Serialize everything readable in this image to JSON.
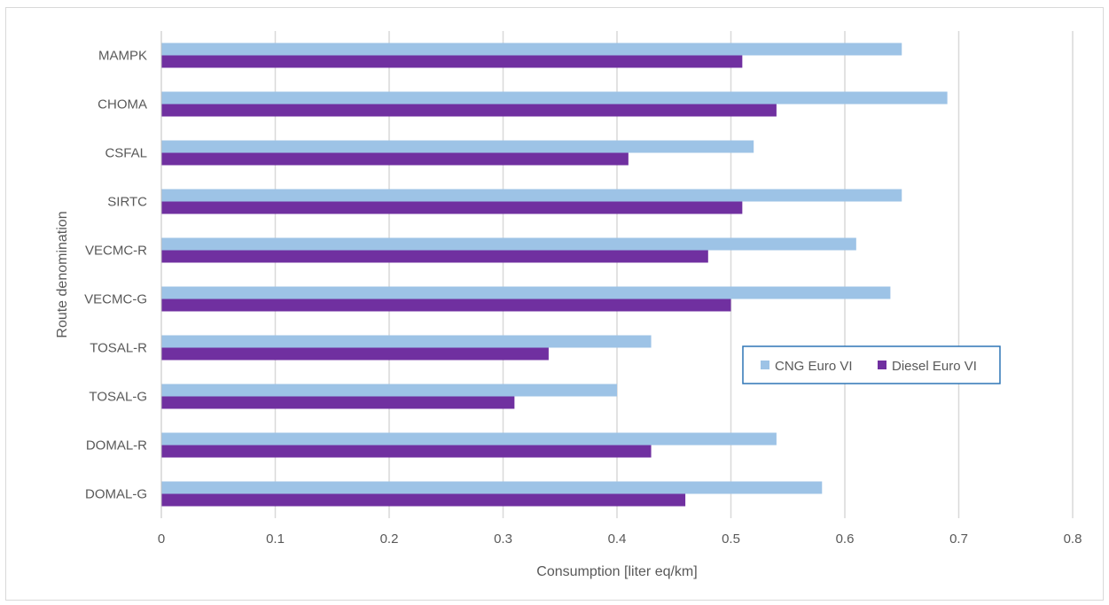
{
  "chart_data": {
    "type": "bar",
    "orientation": "horizontal",
    "categories": [
      "DOMAL-G",
      "DOMAL-R",
      "TOSAL-G",
      "TOSAL-R",
      "VECMC-G",
      "VECMC-R",
      "SIRTC",
      "CSFAL",
      "CHOMA",
      "MAMPK"
    ],
    "series": [
      {
        "name": "CNG Euro VI",
        "color": "#9dc3e6",
        "values": [
          0.58,
          0.54,
          0.4,
          0.43,
          0.64,
          0.61,
          0.65,
          0.52,
          0.69,
          0.65
        ]
      },
      {
        "name": "Diesel Euro VI",
        "color": "#7030a0",
        "values": [
          0.46,
          0.43,
          0.31,
          0.34,
          0.5,
          0.48,
          0.51,
          0.41,
          0.54,
          0.51
        ]
      }
    ],
    "xlabel": "Consumption [liter eq/km]",
    "ylabel": "Route denomination",
    "xlim": [
      0,
      0.8
    ],
    "xticks": [
      "0",
      "0.1",
      "0.2",
      "0.3",
      "0.4",
      "0.5",
      "0.6",
      "0.7",
      "0.8"
    ],
    "grid": "vertical",
    "legend_position": "right"
  }
}
